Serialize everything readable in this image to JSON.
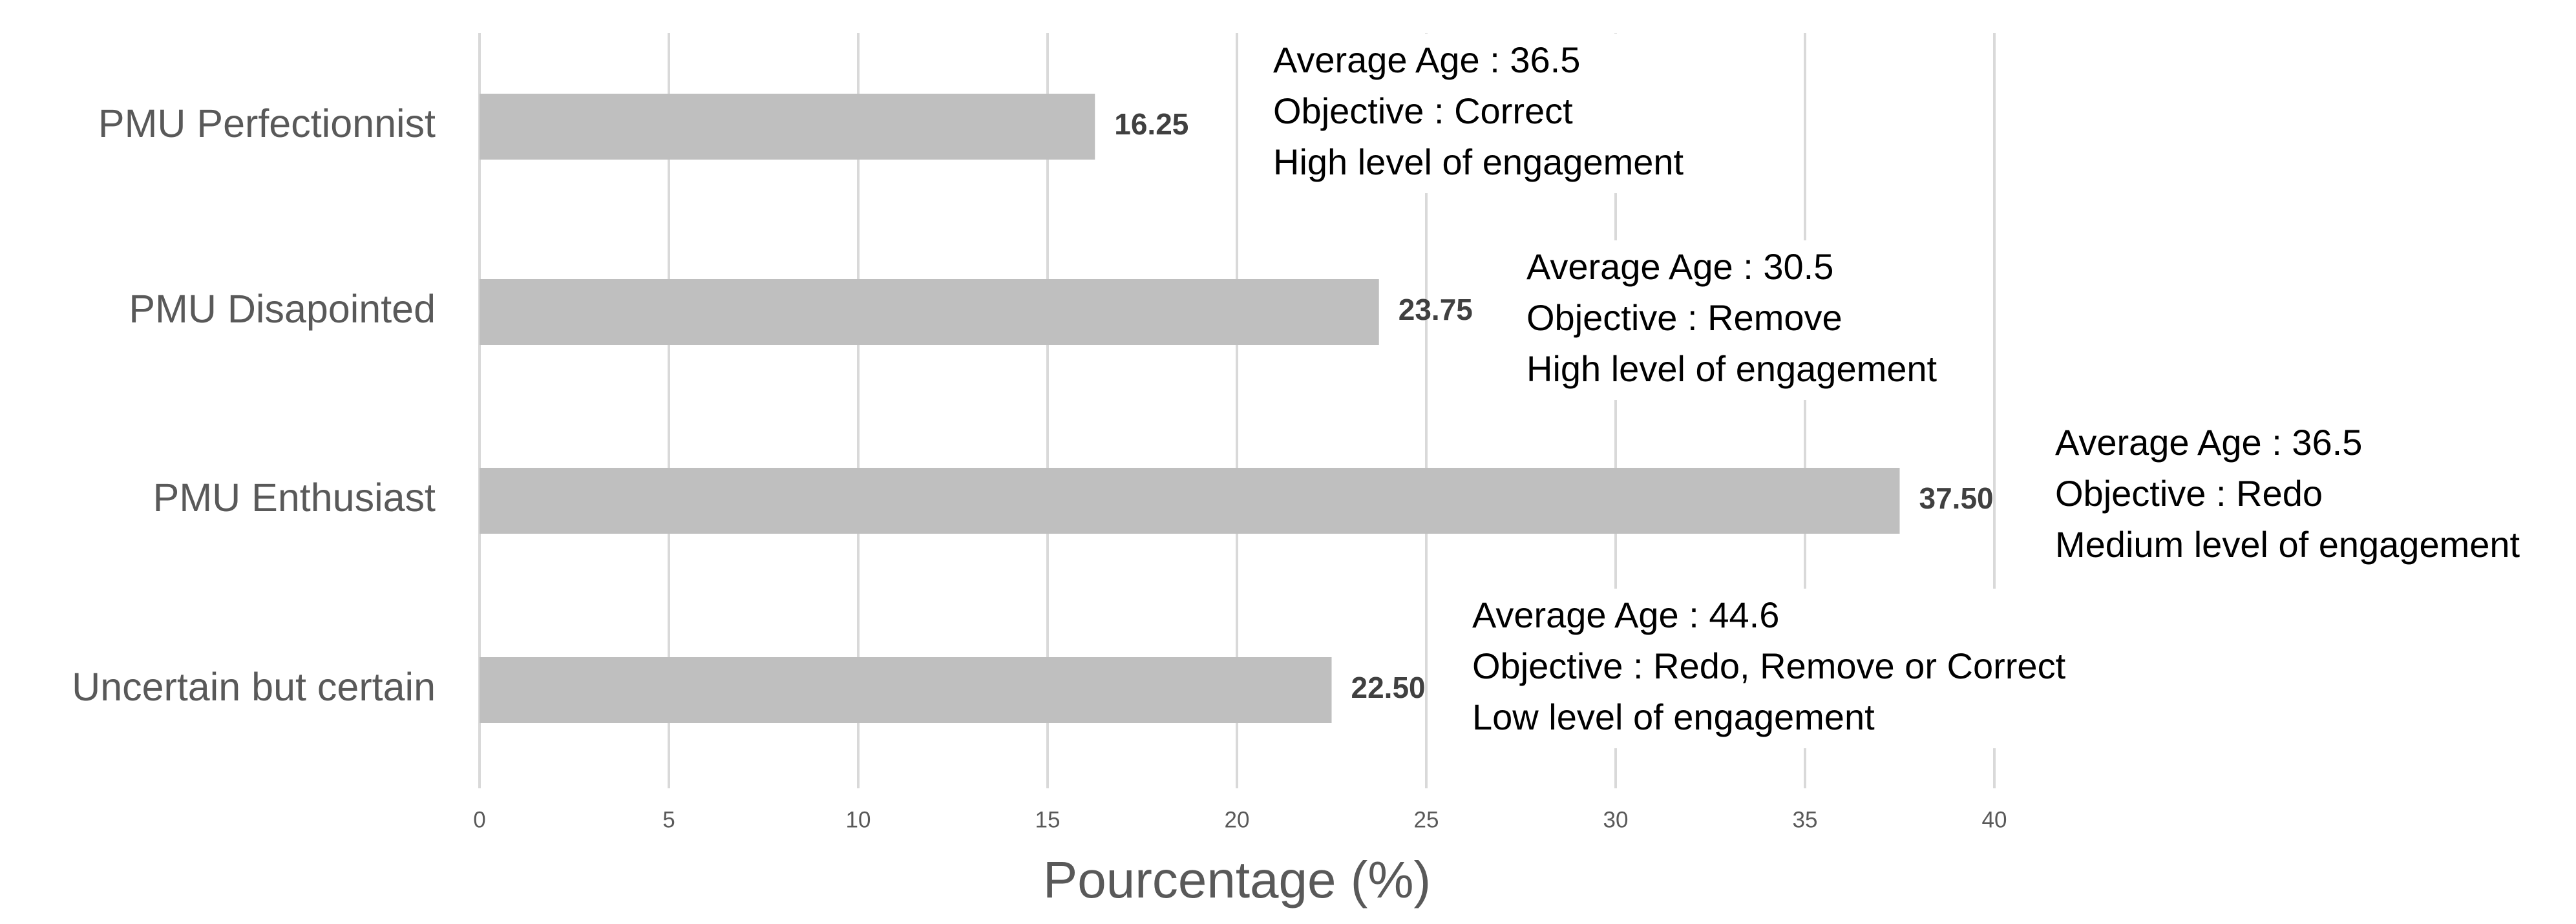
{
  "chart_data": {
    "type": "bar",
    "orientation": "horizontal",
    "categories": [
      "PMU Perfectionnist",
      "PMU Disapointed",
      "PMU Enthusiast",
      "Uncertain but certain"
    ],
    "values": [
      16.25,
      23.75,
      37.5,
      22.5
    ],
    "value_labels": [
      "16.25",
      "23.75",
      "37.50",
      "22.50"
    ],
    "color": "#bfbfbf",
    "xlim": [
      0,
      40
    ],
    "xticks": [
      0,
      5,
      10,
      15,
      20,
      25,
      30,
      35,
      40
    ],
    "grid": true,
    "x_label": "Pourcentage (%)",
    "annotations": [
      [
        "Average Age : 36.5",
        "Objective : Correct",
        "High level of engagement"
      ],
      [
        "Average Age : 30.5",
        "Objective : Remove",
        "High level of engagement"
      ],
      [
        "Average Age : 36.5",
        "Objective : Redo",
        "Medium level of engagement"
      ],
      [
        "Average Age : 44.6",
        "Objective : Redo, Remove or Correct",
        "Low level of engagement"
      ]
    ]
  }
}
